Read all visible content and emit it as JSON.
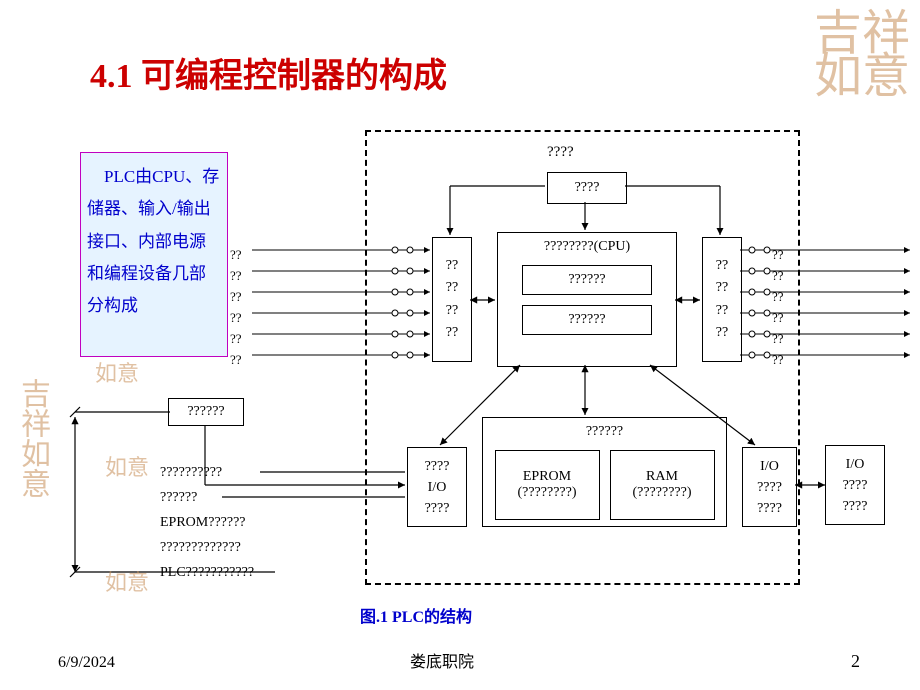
{
  "title": "4.1  可编程控制器的构成",
  "description": "　PLC由CPU、存储器、输入/输出接口、内部电源和编程设备几部分构成",
  "diagram": {
    "outer_label": "????",
    "top_box": "????",
    "input_box": "??\n??\n??\n??",
    "output_box": "??\n??\n??\n??",
    "cpu": {
      "title": "????????(CPU)",
      "sub1": "??????",
      "sub2": "??????"
    },
    "memory": {
      "title": "??????",
      "eprom": "EPROM",
      "eprom_sub": "(????????)",
      "ram": "RAM",
      "ram_sub": "(????????)"
    },
    "io1": "????\nI/O\n????",
    "io2": "I/O\n????\n????",
    "io3": "I/O\n????\n????",
    "ext_box": "??????",
    "io_labels_in": [
      "??",
      "??",
      "??",
      "??",
      "??",
      "??"
    ],
    "io_labels_out": [
      "??",
      "??",
      "??",
      "??",
      "??",
      "??"
    ],
    "left_list": [
      "??????????",
      "??????",
      "EPROM??????",
      "?????????????",
      "PLC???????????"
    ]
  },
  "caption": "图.1  PLC的结构",
  "footer": {
    "date": "6/9/2024",
    "org": "娄底职院",
    "page": "2"
  },
  "watermarks": {
    "tr": "吉祥\n如意",
    "bl": "吉祥如意",
    "sm": "如意"
  },
  "colors": {
    "title": "#cc0000",
    "desc_bg": "#e6f3ff",
    "desc_border": "#c000c0",
    "desc_text": "#0000cc",
    "caption": "#0000cc",
    "watermark": "#c89058"
  }
}
